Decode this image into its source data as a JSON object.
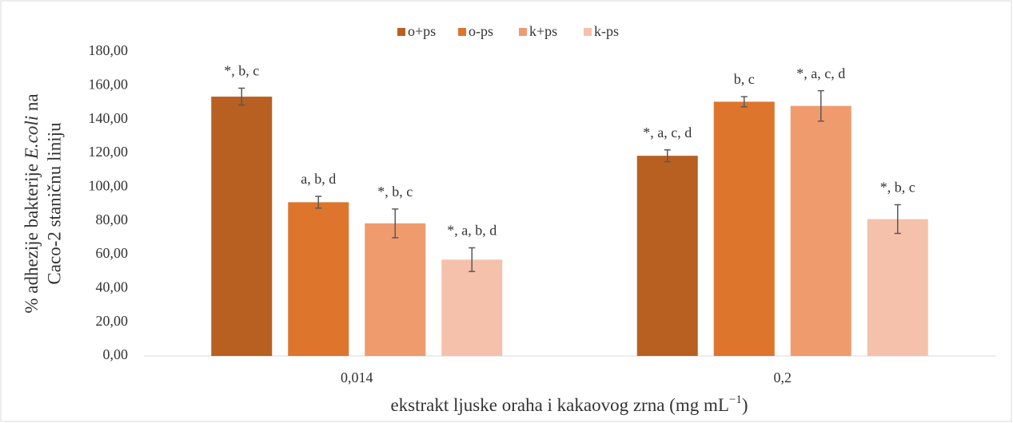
{
  "chart_data": {
    "type": "bar",
    "ylabel_line1": [
      "% adhezije bakterije ",
      "E.coli",
      " na"
    ],
    "ylabel_line2": "Caco-2 staničnu liniju",
    "xlabel": [
      "ekstrakt ljuske oraha i kakaovog zrna (mg mL",
      "−1",
      ")"
    ],
    "categories": [
      "0,014",
      "0,2"
    ],
    "series": [
      {
        "name": "o+ps",
        "color": "#b85f22",
        "values": [
          153.5,
          118.5
        ],
        "errors": [
          5,
          3.5
        ],
        "annotations": [
          "*, b, c",
          "*, a, c, d"
        ]
      },
      {
        "name": "o-ps",
        "color": "#dd752d",
        "values": [
          91,
          150.5
        ],
        "errors": [
          3.5,
          3
        ],
        "annotations": [
          "a, b, d",
          "b, c"
        ]
      },
      {
        "name": "k+ps",
        "color": "#ef9b6e",
        "values": [
          78.5,
          148
        ],
        "errors": [
          8.5,
          9
        ],
        "annotations": [
          "*, b, c",
          "*, a, c, d"
        ]
      },
      {
        "name": "k-ps",
        "color": "#f5c1aa",
        "values": [
          57,
          81
        ],
        "errors": [
          7,
          8.5
        ],
        "annotations": [
          "*, a, b, d",
          "*, b, c"
        ]
      }
    ],
    "ylim": [
      0,
      180
    ],
    "yticks": [
      {
        "value": 0,
        "label": "0,00"
      },
      {
        "value": 20,
        "label": "20,00"
      },
      {
        "value": 40,
        "label": "40,00"
      },
      {
        "value": 60,
        "label": "60,00"
      },
      {
        "value": 80,
        "label": "80,00"
      },
      {
        "value": 100,
        "label": "100,00"
      },
      {
        "value": 120,
        "label": "120,00"
      },
      {
        "value": 140,
        "label": "140,00"
      },
      {
        "value": 160,
        "label": "160,00"
      },
      {
        "value": 180,
        "label": "180,00"
      }
    ],
    "grid": false,
    "legend": "top"
  }
}
